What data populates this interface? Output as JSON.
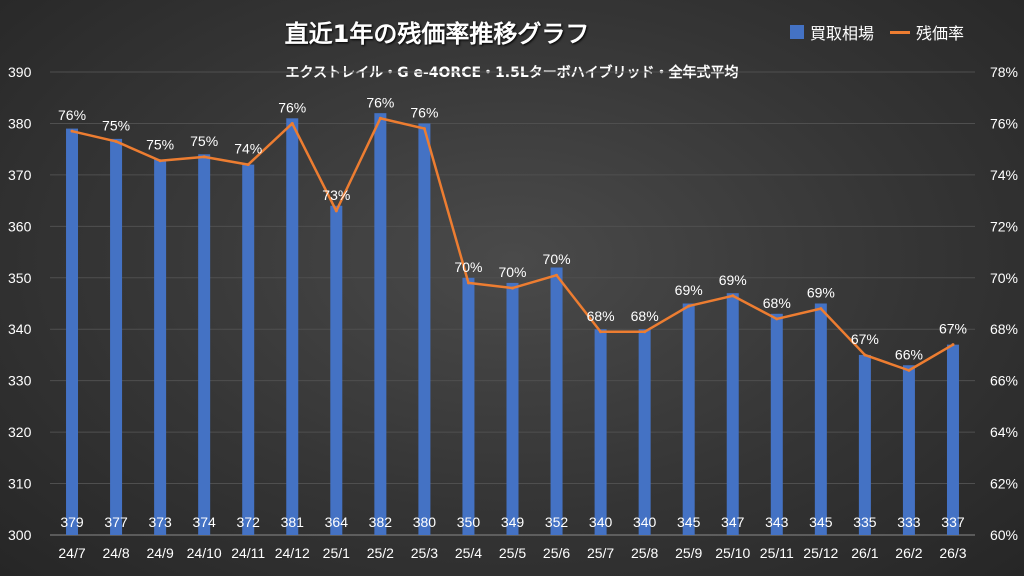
{
  "chart_data": {
    "type": "bar+line",
    "title": "直近1年の残価率推移グラフ",
    "subtitle": "エクストレイル・G e-4ORCE・1.5Lターボハイブリッド・全年式平均",
    "categories": [
      "24/7",
      "24/8",
      "24/9",
      "24/10",
      "24/11",
      "24/12",
      "25/1",
      "25/2",
      "25/3",
      "25/4",
      "25/5",
      "25/6",
      "25/7",
      "25/8",
      "25/9",
      "25/10",
      "25/11",
      "25/12",
      "26/1",
      "26/2",
      "26/3"
    ],
    "series": [
      {
        "name": "買取相場",
        "type": "bar",
        "axis": "left",
        "color": "#4472c4",
        "values": [
          379,
          377,
          373,
          374,
          372,
          381,
          364,
          382,
          380,
          350,
          349,
          352,
          340,
          340,
          345,
          347,
          343,
          345,
          335,
          333,
          337
        ],
        "labels": [
          "379",
          "377",
          "373",
          "374",
          "372",
          "381",
          "364",
          "382",
          "380",
          "350",
          "349",
          "352",
          "340",
          "340",
          "345",
          "347",
          "343",
          "345",
          "335",
          "333",
          "337"
        ]
      },
      {
        "name": "残価率",
        "type": "line",
        "axis": "right",
        "color": "#ed7d31",
        "values": [
          75.7,
          75.3,
          74.55,
          74.7,
          74.4,
          76.0,
          72.6,
          76.2,
          75.8,
          69.8,
          69.6,
          70.1,
          67.9,
          67.9,
          68.9,
          69.3,
          68.4,
          68.8,
          67.0,
          66.4,
          67.4
        ],
        "labels": [
          "76%",
          "75%",
          "75%",
          "75%",
          "74%",
          "76%",
          "73%",
          "76%",
          "76%",
          "70%",
          "70%",
          "70%",
          "68%",
          "68%",
          "69%",
          "69%",
          "68%",
          "69%",
          "67%",
          "66%",
          "67%"
        ]
      }
    ],
    "y_left": {
      "range": [
        300,
        390
      ],
      "ticks": [
        "300",
        "310",
        "320",
        "330",
        "340",
        "350",
        "360",
        "370",
        "380",
        "390"
      ]
    },
    "y_right": {
      "range": [
        60,
        78
      ],
      "ticks": [
        "60%",
        "62%",
        "64%",
        "66%",
        "68%",
        "70%",
        "72%",
        "74%",
        "76%",
        "78%"
      ]
    },
    "grid": true,
    "legend": "top-right"
  }
}
